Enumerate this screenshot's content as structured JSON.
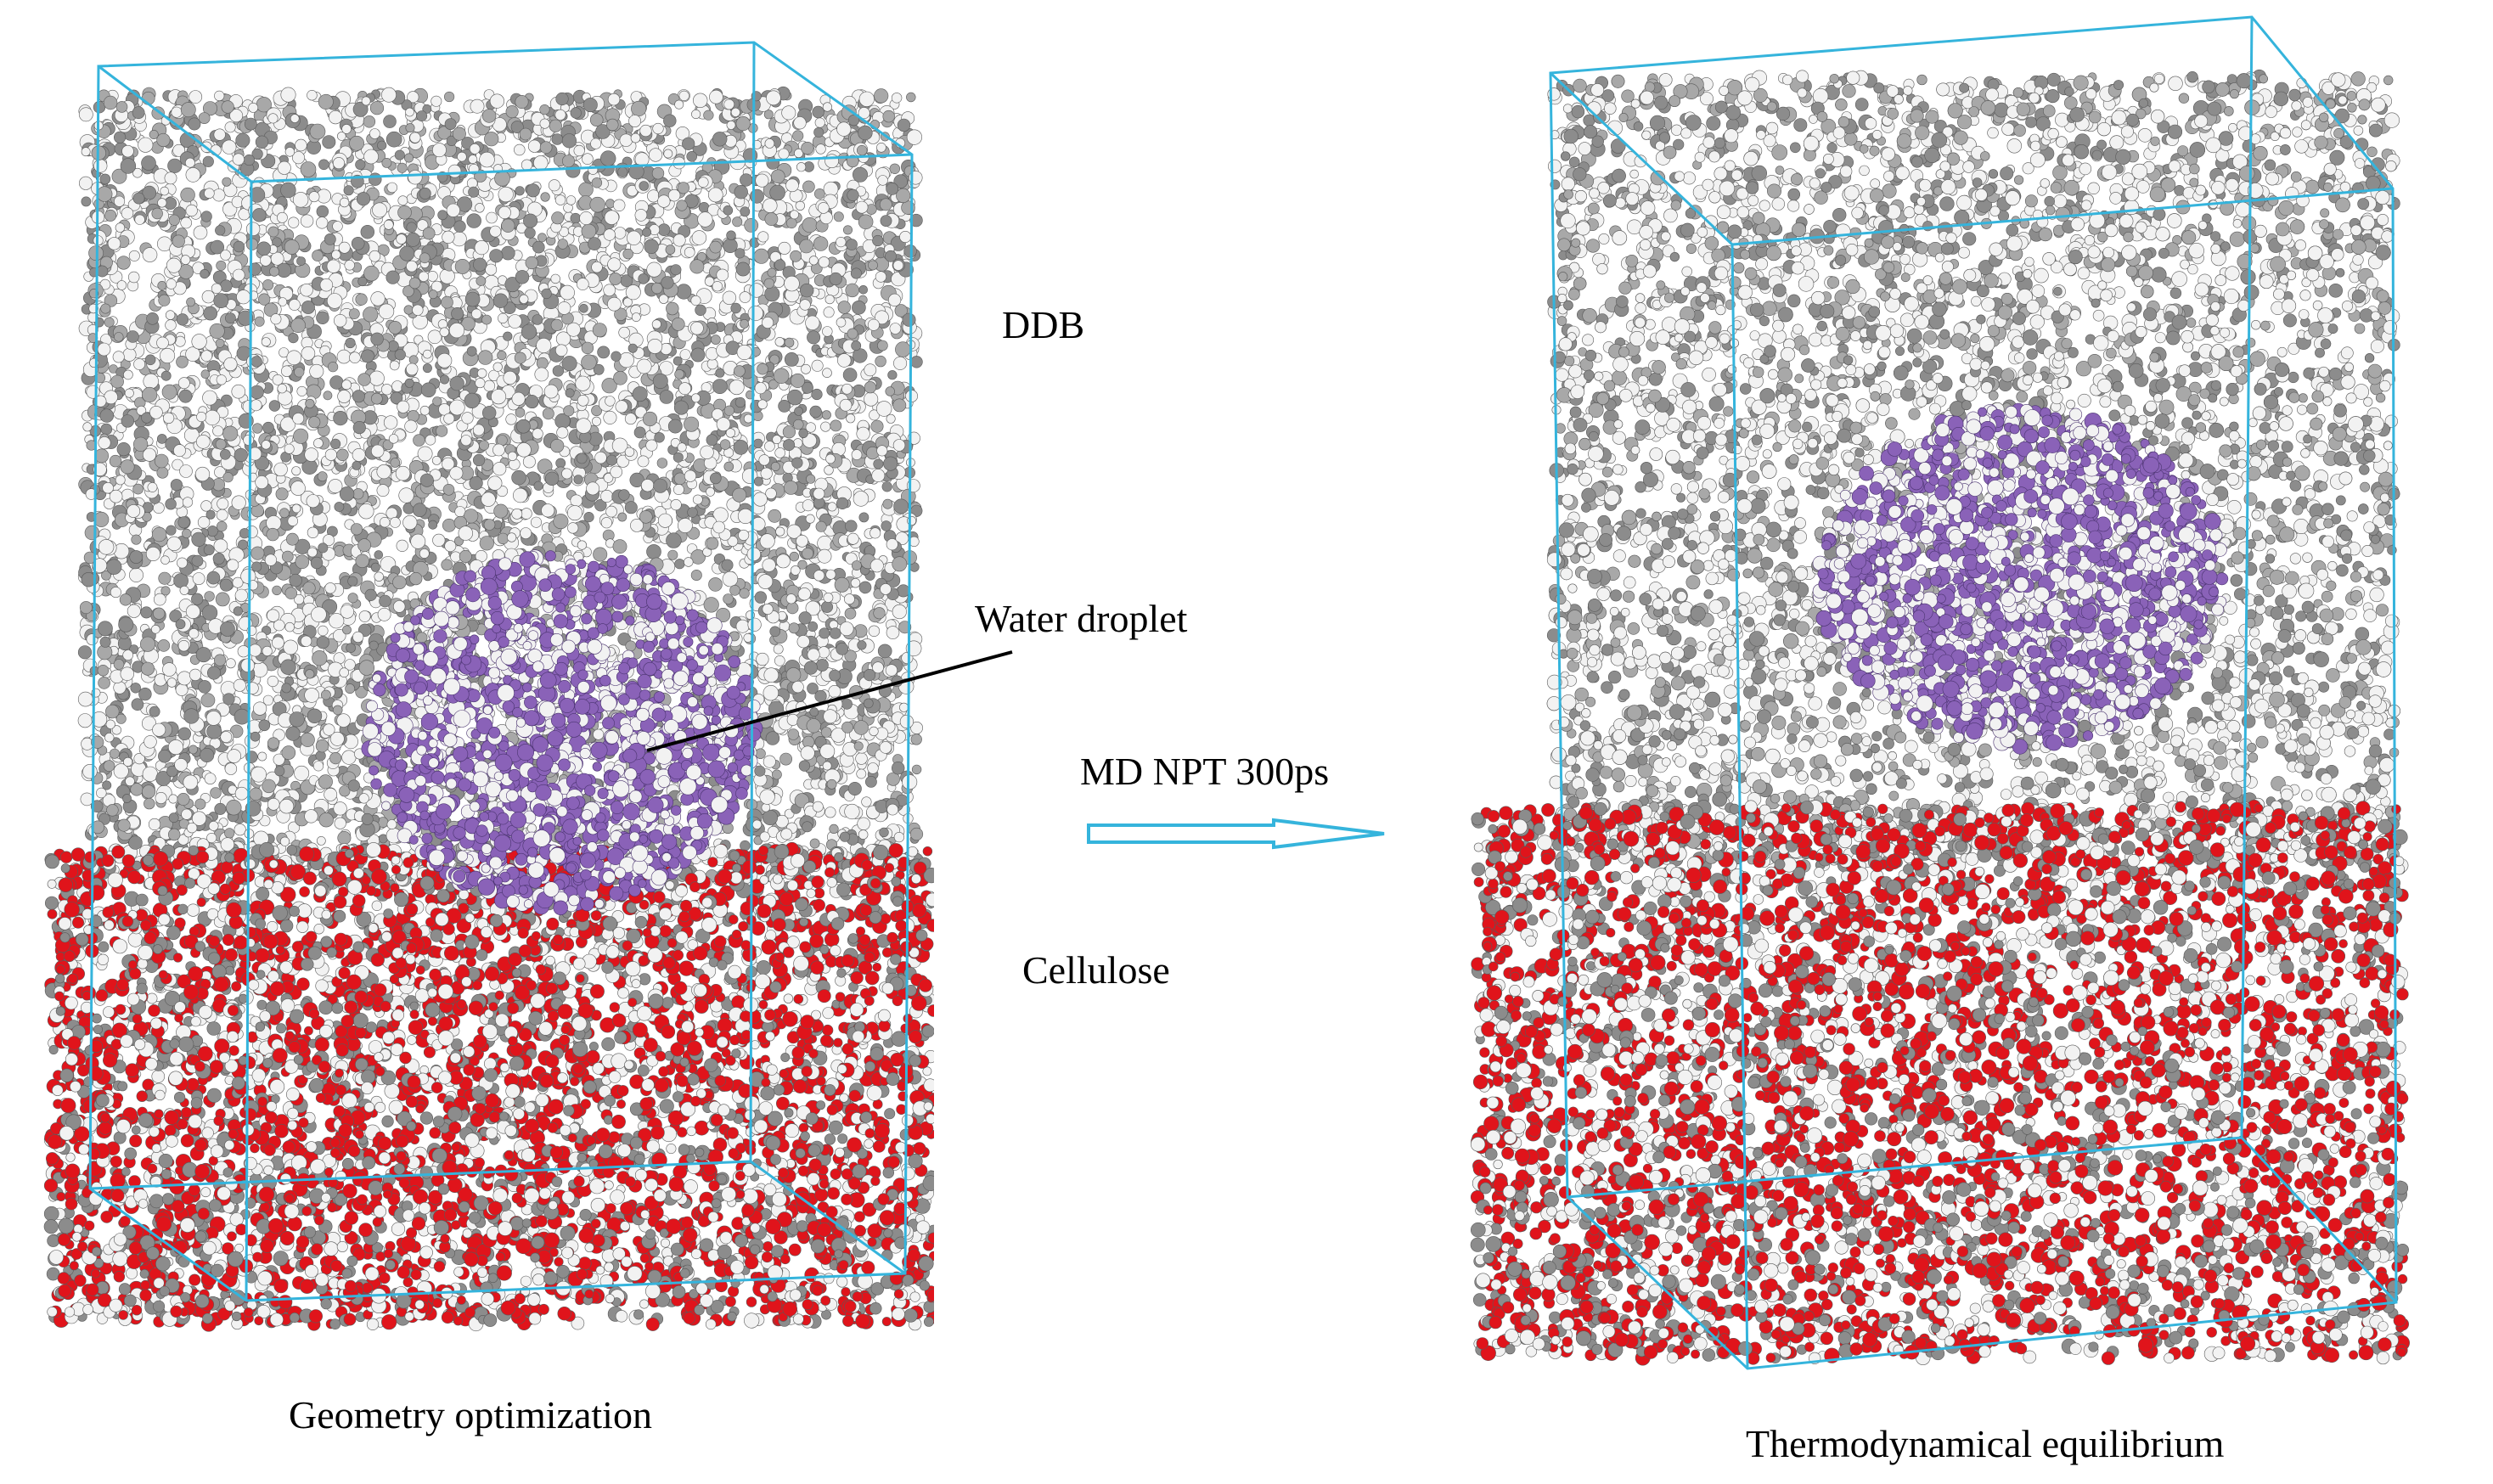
{
  "labels": {
    "ddb": "DDB",
    "water_droplet": "Water droplet",
    "md_step": "MD NPT 300ps",
    "cellulose": "Cellulose"
  },
  "captions": {
    "left": "Geometry optimization",
    "right": "Thermodynamical equilibrium"
  },
  "colors": {
    "box_outline": "#35b4dc",
    "ddb_atoms": "#8c8c8c",
    "hydrogen_atoms": "#f2f2f2",
    "water_atoms": "#8a62b8",
    "cellulose_oxygen": "#e0141b",
    "arrow": "#35b4dc",
    "leader_line": "#000000"
  }
}
